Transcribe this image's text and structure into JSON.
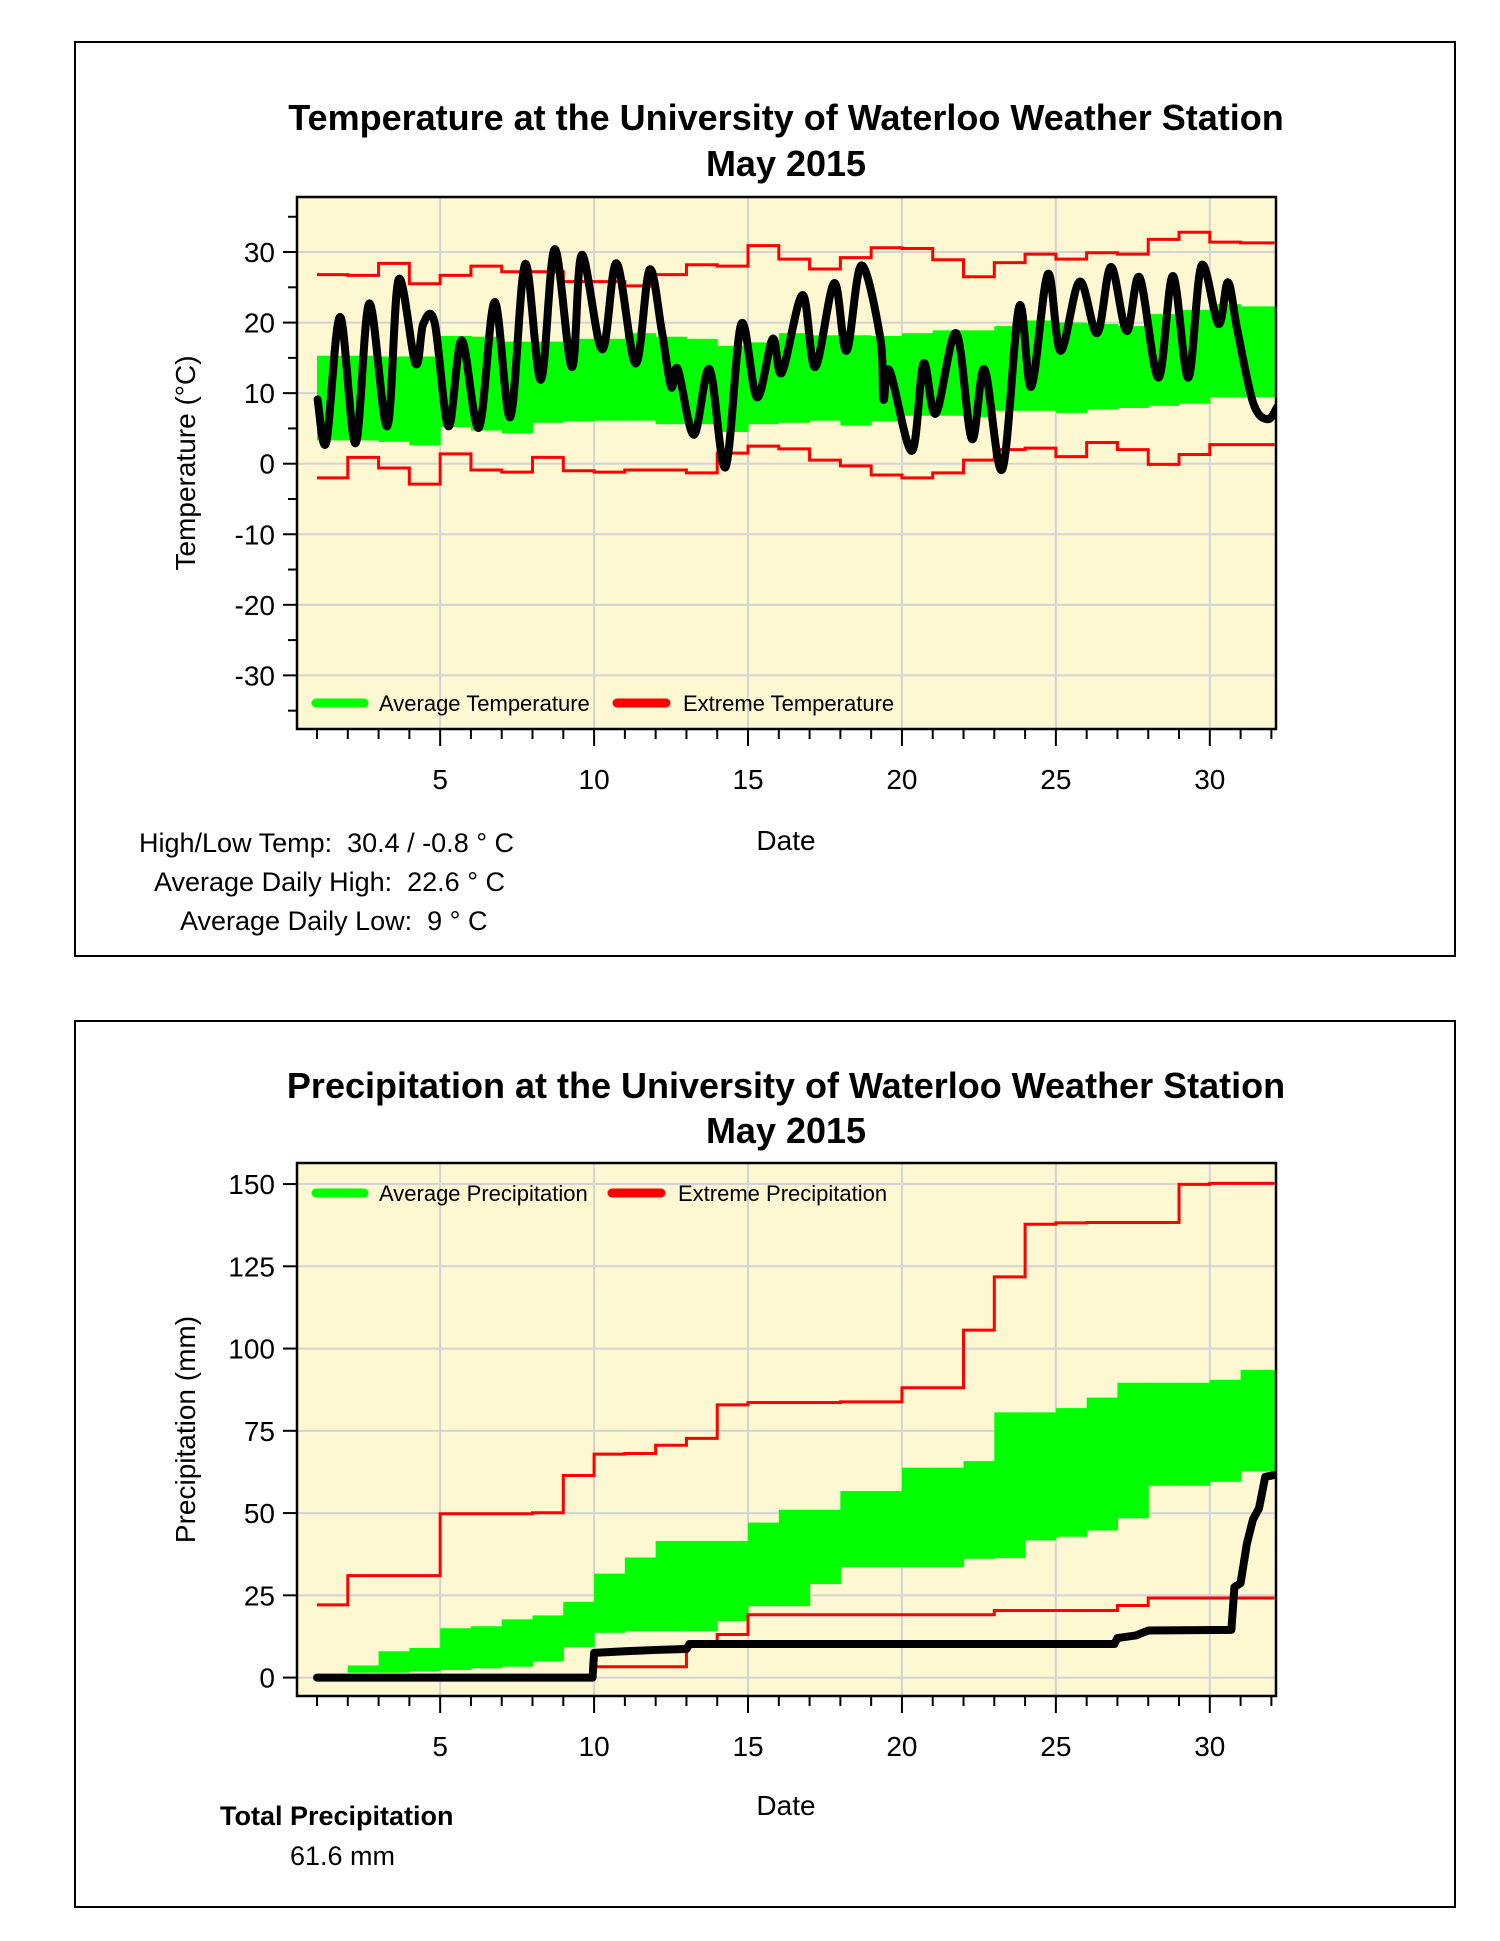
{
  "colors": {
    "plot_bg": "#fdf7d2",
    "grid": "#d3d3d3",
    "band": "#00ff00",
    "extreme": "#ff0000",
    "observed": "#000000"
  },
  "temperature_stats": {
    "high_low_label": "High/Low Temp:",
    "high_low_value": "30.4 / -0.8 ° C",
    "avg_high_label": "Average Daily High:",
    "avg_high_value": "22.6 ° C",
    "avg_low_label": "Average Daily Low:",
    "avg_low_value": "9 ° C"
  },
  "precipitation_stats": {
    "total_label": "Total Precipitation",
    "total_value": "61.6 mm"
  },
  "chart_data": [
    {
      "type": "line",
      "title": [
        "Temperature at the University of Waterloo Weather Station",
        "May 2015"
      ],
      "xlabel": "Date",
      "ylabel": "Temperature (°C)",
      "xlim": [
        0.35,
        32.15
      ],
      "ylim": [
        -37.6,
        37.8
      ],
      "xticks": [
        5,
        10,
        15,
        20,
        25,
        30
      ],
      "xminor": 1,
      "yticks": [
        -30,
        -20,
        -10,
        0,
        10,
        20,
        30
      ],
      "yminor": 5,
      "grid": true,
      "legend": {
        "position": "bottom-left",
        "entries": [
          "Average Temperature",
          "Extreme Temperature"
        ]
      },
      "band_days_start": 1,
      "band_last_end": 32.1,
      "average_upper": [
        15.3,
        15.3,
        15.2,
        15.2,
        18.1,
        18.0,
        17.3,
        17.3,
        17.7,
        17.7,
        18.5,
        18.0,
        17.7,
        16.7,
        17.2,
        18.5,
        18.2,
        18.2,
        18.1,
        18.5,
        18.9,
        18.9,
        19.5,
        20.3,
        20.0,
        19.8,
        19.5,
        21.2,
        21.8,
        22.6,
        22.3
      ],
      "average_lower": [
        3.3,
        3.3,
        3.1,
        2.6,
        5.2,
        4.7,
        4.3,
        5.8,
        6.0,
        6.1,
        6.1,
        5.6,
        5.6,
        4.5,
        5.6,
        5.8,
        6.1,
        5.4,
        6.0,
        6.8,
        6.8,
        6.6,
        7.5,
        7.5,
        7.2,
        7.7,
        7.9,
        8.2,
        8.5,
        9.4,
        9.4
      ],
      "extreme_max": [
        26.8,
        26.7,
        28.4,
        25.5,
        26.7,
        28.0,
        27.2,
        27.2,
        25.8,
        25.8,
        25.2,
        26.8,
        28.2,
        28.0,
        30.9,
        29.0,
        27.6,
        29.2,
        30.6,
        30.5,
        28.9,
        26.5,
        28.5,
        29.7,
        29.0,
        29.9,
        29.7,
        31.8,
        32.8,
        31.4,
        31.3
      ],
      "extreme_min": [
        -2.0,
        0.9,
        -0.6,
        -2.9,
        1.4,
        -0.9,
        -1.2,
        0.9,
        -1.0,
        -1.2,
        -0.9,
        -0.9,
        -1.3,
        1.5,
        2.5,
        2.1,
        0.5,
        -0.3,
        -1.6,
        -2.0,
        -1.3,
        0.5,
        2.0,
        2.2,
        1.0,
        3.0,
        2.0,
        -0.1,
        1.3,
        2.7,
        2.7
      ],
      "observed": [
        [
          1.02,
          9.1
        ],
        [
          1.3,
          3
        ],
        [
          1.75,
          20.8
        ],
        [
          2.25,
          2.9
        ],
        [
          2.7,
          22.7
        ],
        [
          3.28,
          5.3
        ],
        [
          3.65,
          26.1
        ],
        [
          4.2,
          14.2
        ],
        [
          4.45,
          19.8
        ],
        [
          4.82,
          20
        ],
        [
          5.27,
          5.3
        ],
        [
          5.7,
          17.5
        ],
        [
          6.26,
          5.1
        ],
        [
          6.77,
          22.9
        ],
        [
          7.28,
          6.6
        ],
        [
          7.76,
          28.3
        ],
        [
          8.27,
          11.9
        ],
        [
          8.72,
          30.4
        ],
        [
          9.28,
          13.7
        ],
        [
          9.6,
          29.6
        ],
        [
          10.26,
          16.2
        ],
        [
          10.73,
          28.4
        ],
        [
          11.35,
          14.2
        ],
        [
          11.8,
          27.5
        ],
        [
          12.2,
          18.8
        ],
        [
          12.5,
          10.9
        ],
        [
          12.72,
          13.4
        ],
        [
          13.24,
          4.1
        ],
        [
          13.75,
          13.4
        ],
        [
          14.27,
          -0.5
        ],
        [
          14.78,
          19.8
        ],
        [
          15.29,
          9.4
        ],
        [
          15.8,
          17.7
        ],
        [
          16.1,
          12.9
        ],
        [
          16.77,
          23.9
        ],
        [
          17.18,
          13.7
        ],
        [
          17.8,
          25.6
        ],
        [
          18.2,
          16
        ],
        [
          18.68,
          28.1
        ],
        [
          19.3,
          17.7
        ],
        [
          19.4,
          9.1
        ],
        [
          19.6,
          13.2
        ],
        [
          20.32,
          1.8
        ],
        [
          20.7,
          14.2
        ],
        [
          21.1,
          7.1
        ],
        [
          21.76,
          18.5
        ],
        [
          22.27,
          3.5
        ],
        [
          22.68,
          13.4
        ],
        [
          23.26,
          -0.8
        ],
        [
          23.81,
          22.3
        ],
        [
          24.2,
          10.9
        ],
        [
          24.74,
          26.9
        ],
        [
          25.15,
          16
        ],
        [
          25.77,
          25.8
        ],
        [
          26.34,
          18.5
        ],
        [
          26.79,
          27.9
        ],
        [
          27.3,
          18.8
        ],
        [
          27.72,
          26.4
        ],
        [
          28.33,
          12.2
        ],
        [
          28.8,
          26.6
        ],
        [
          29.3,
          12.2
        ],
        [
          29.73,
          28.1
        ],
        [
          30.28,
          19.8
        ],
        [
          30.59,
          25.7
        ],
        [
          30.9,
          18.8
        ],
        [
          31.41,
          8.6
        ],
        [
          31.88,
          6.3
        ],
        [
          32.2,
          8.1
        ]
      ]
    },
    {
      "type": "line",
      "title": [
        "Precipitation at the University of Waterloo Weather Station",
        "May 2015"
      ],
      "xlabel": "Date",
      "ylabel": "Precipitation (mm)",
      "xlim": [
        0.35,
        32.15
      ],
      "ylim": [
        -5.6,
        156.4
      ],
      "xticks": [
        5,
        10,
        15,
        20,
        25,
        30
      ],
      "xminor": 1,
      "yticks": [
        0,
        25,
        50,
        75,
        100,
        125,
        150
      ],
      "yminor": 25,
      "grid": true,
      "legend": {
        "position": "top-left",
        "entries": [
          "Average Precipitation",
          "Extreme Precipitation"
        ]
      },
      "band_days_start": 1,
      "band_last_end": 32.1,
      "average_upper": [
        0,
        3.7,
        8.0,
        9.0,
        15.0,
        15.6,
        17.7,
        18.9,
        23.0,
        31.6,
        36.5,
        41.5,
        41.5,
        41.5,
        47.1,
        51.0,
        51.0,
        56.7,
        56.7,
        63.8,
        63.8,
        65.8,
        80.6,
        80.6,
        81.9,
        85.1,
        89.6,
        89.6,
        89.6,
        90.5,
        93.5
      ],
      "average_lower": [
        0,
        1.5,
        1.5,
        1.9,
        2.3,
        2.8,
        3.3,
        4.9,
        9.3,
        13.6,
        14.1,
        14.1,
        14.1,
        17.2,
        21.7,
        21.7,
        28.4,
        33.6,
        33.6,
        33.6,
        33.6,
        36.1,
        36.3,
        41.7,
        42.8,
        44.7,
        48.4,
        58.3,
        58.3,
        59.5,
        62.7
      ],
      "extreme_max": [
        22.1,
        31,
        31,
        31,
        49.8,
        49.8,
        49.8,
        50.1,
        61.4,
        67.9,
        68.1,
        70.6,
        72.7,
        82.9,
        83.6,
        83.6,
        83.6,
        83.8,
        83.8,
        88.1,
        88.1,
        105.6,
        121.8,
        137.8,
        138.2,
        138.3,
        138.3,
        138.3,
        149.9,
        150.2,
        150.2
      ],
      "extreme_min": [
        0,
        0,
        0,
        0,
        0,
        0,
        0,
        0,
        0,
        3.3,
        3.3,
        3.3,
        9.8,
        13.1,
        19.1,
        19.1,
        19.1,
        19.1,
        19.1,
        19.1,
        19.1,
        19.1,
        20.4,
        20.4,
        20.4,
        20.4,
        21.9,
        24.2,
        24.2,
        24.2,
        24.2
      ],
      "observed": [
        [
          1,
          0
        ],
        [
          9.95,
          0
        ],
        [
          10.0,
          7.5
        ],
        [
          11,
          8
        ],
        [
          12,
          8.4
        ],
        [
          13,
          8.7
        ],
        [
          13.1,
          10.2
        ],
        [
          26.9,
          10.2
        ],
        [
          27.0,
          12
        ],
        [
          27.6,
          12.8
        ],
        [
          28,
          14.3
        ],
        [
          30.7,
          14.5
        ],
        [
          30.8,
          27.5
        ],
        [
          31,
          28.7
        ],
        [
          31.2,
          40.5
        ],
        [
          31.4,
          48
        ],
        [
          31.6,
          51.5
        ],
        [
          31.8,
          61
        ],
        [
          32.1,
          61.6
        ]
      ]
    }
  ]
}
